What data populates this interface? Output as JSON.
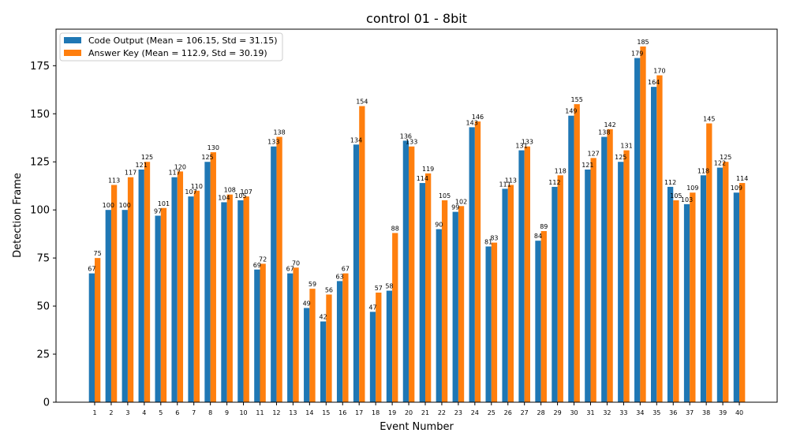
{
  "chart_data": {
    "type": "bar",
    "title": "control 01 - 8bit",
    "xlabel": "Event Number",
    "ylabel": "Detection Frame",
    "ylim": [
      0,
      194
    ],
    "yticks": [
      0,
      25,
      50,
      75,
      100,
      125,
      150,
      175
    ],
    "grid": false,
    "legend_position": "top-left",
    "categories": [
      "1",
      "2",
      "3",
      "4",
      "5",
      "6",
      "7",
      "8",
      "9",
      "10",
      "11",
      "12",
      "13",
      "14",
      "15",
      "16",
      "17",
      "18",
      "19",
      "20",
      "21",
      "22",
      "23",
      "24",
      "25",
      "26",
      "27",
      "28",
      "29",
      "30",
      "31",
      "32",
      "33",
      "34",
      "35",
      "36",
      "37",
      "38",
      "39",
      "40"
    ],
    "series": [
      {
        "name": "Code Output (Mean = 106.15, Std = 31.15)",
        "color": "#1f77b4",
        "values": [
          67,
          100,
          100,
          121,
          97,
          117,
          107,
          125,
          104,
          105,
          69,
          133,
          67,
          49,
          42,
          63,
          134,
          47,
          58,
          136,
          114,
          90,
          99,
          143,
          81,
          111,
          131,
          84,
          112,
          149,
          121,
          138,
          125,
          179,
          164,
          112,
          103,
          118,
          122,
          109
        ]
      },
      {
        "name": "Answer Key (Mean = 112.9, Std = 30.19)",
        "color": "#ff7f0e",
        "values": [
          75,
          113,
          117,
          125,
          101,
          120,
          110,
          130,
          108,
          107,
          72,
          138,
          70,
          59,
          56,
          67,
          154,
          57,
          88,
          133,
          119,
          105,
          102,
          146,
          83,
          113,
          133,
          89,
          118,
          155,
          127,
          142,
          131,
          185,
          170,
          105,
          109,
          145,
          125,
          114
        ]
      }
    ]
  }
}
